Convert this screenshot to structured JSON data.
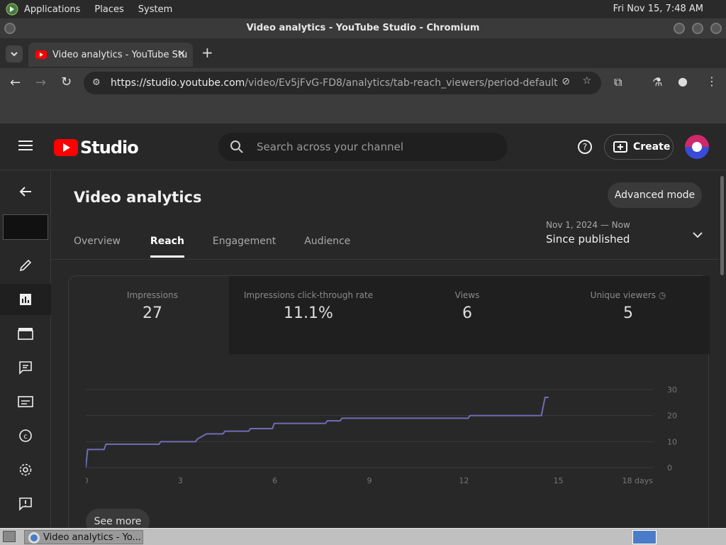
{
  "os": {
    "menu": [
      "Applications",
      "Places",
      "System"
    ],
    "clock": "Fri Nov 15,  7:48 AM"
  },
  "window": {
    "title": "Video analytics - YouTube Studio - Chromium"
  },
  "browser": {
    "tab_title": "Video analytics - YouTube Stu",
    "url_host": "https://studio.youtube.com",
    "url_path": "/video/Ev5jFvG-FD8/analytics/tab-reach_viewers/period-default"
  },
  "studio": {
    "logo_text": "Studio",
    "search_placeholder": "Search across your channel",
    "create_label": "Create"
  },
  "page": {
    "title": "Video analytics",
    "advanced_label": "Advanced mode",
    "tabs": [
      "Overview",
      "Reach",
      "Engagement",
      "Audience"
    ],
    "period_dates": "Nov 1, 2024 — Now",
    "period_label": "Since published"
  },
  "metrics": [
    {
      "label": "Impressions",
      "value": "27"
    },
    {
      "label": "Impressions click-through rate",
      "value": "11.1%"
    },
    {
      "label": "Views",
      "value": "6"
    },
    {
      "label": "Unique viewers",
      "value": "5"
    }
  ],
  "see_more_label": "See more",
  "taskbar": {
    "item_label": "Video analytics - Yo..."
  },
  "chart_data": {
    "type": "line",
    "series": [
      {
        "values": [
          [
            0,
            0
          ],
          [
            0.1,
            7
          ],
          [
            1,
            7
          ],
          [
            1.1,
            9
          ],
          [
            4,
            9
          ],
          [
            4.1,
            10
          ],
          [
            6,
            10
          ],
          [
            6.1,
            11
          ],
          [
            6.6,
            13
          ],
          [
            7.5,
            13
          ],
          [
            7.6,
            14
          ],
          [
            8.9,
            14
          ],
          [
            9,
            15
          ],
          [
            10.2,
            15
          ],
          [
            10.3,
            17
          ],
          [
            13.1,
            17
          ],
          [
            13.2,
            18
          ],
          [
            13.9,
            18
          ],
          [
            14,
            19
          ],
          [
            20.9,
            19
          ],
          [
            21,
            20
          ],
          [
            24.9,
            20
          ],
          [
            25.1,
            27
          ],
          [
            25.3,
            27
          ]
        ]
      }
    ],
    "x_ticks": [
      "0",
      "3",
      "6",
      "9",
      "12",
      "15",
      "18 days"
    ],
    "y_ticks": [
      "0",
      "10",
      "20",
      "30"
    ],
    "xlim": [
      0,
      31
    ],
    "ylim": [
      0,
      30
    ],
    "colors": {
      "line": "#6f6cb6",
      "grid": "#3a3a3a"
    }
  }
}
